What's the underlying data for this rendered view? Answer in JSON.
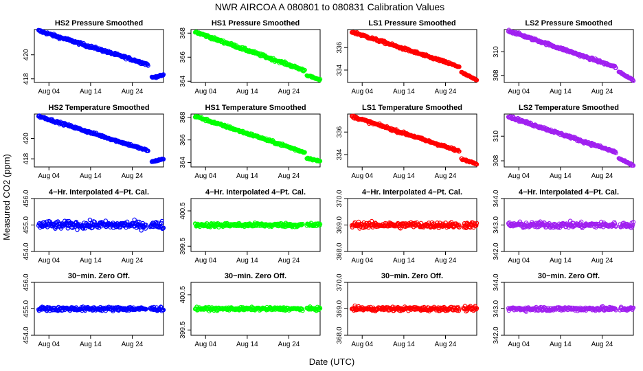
{
  "title": "NWR   AIRCOA A   080801 to 080831   Calibration Values",
  "xlabel": "Date (UTC)",
  "ylabel": "Measured CO2 (ppm)",
  "colors": {
    "HS2": "#0000ff",
    "HS1": "#00ff00",
    "LS1": "#ff0000",
    "LS2": "#a020f0"
  },
  "chart_data": [
    {
      "type": "scatter",
      "title": "HS2 Pressure Smoothed",
      "color_key": "HS2",
      "xlim": [
        0,
        31
      ],
      "ylim": [
        417.7,
        422.1
      ],
      "yticks": [
        418,
        420
      ],
      "xticks": [
        3.5,
        13.5,
        23.5
      ],
      "xticklabels": [
        "Aug 04",
        "Aug 14",
        "Aug 24"
      ],
      "segments": [
        {
          "x": [
            1,
            27.3
          ],
          "y": [
            422.0,
            419.2
          ],
          "noise": 0.1
        },
        {
          "x": [
            28.2,
            31
          ],
          "y": [
            418.1,
            418.3
          ],
          "noise": 0.06
        }
      ]
    },
    {
      "type": "scatter",
      "title": "HS1 Pressure Smoothed",
      "color_key": "HS1",
      "xlim": [
        0,
        31
      ],
      "ylim": [
        363.9,
        368.3
      ],
      "yticks": [
        364,
        366,
        368
      ],
      "xticks": [
        3.5,
        13.5,
        23.5
      ],
      "xticklabels": [
        "Aug 04",
        "Aug 14",
        "Aug 24"
      ],
      "segments": [
        {
          "x": [
            1,
            27.3
          ],
          "y": [
            368.1,
            364.9
          ],
          "noise": 0.1
        },
        {
          "x": [
            27.8,
            31
          ],
          "y": [
            364.5,
            364.1
          ],
          "noise": 0.06
        }
      ]
    },
    {
      "type": "scatter",
      "title": "LS1 Pressure Smoothed",
      "color_key": "LS1",
      "xlim": [
        0,
        31
      ],
      "ylim": [
        332.9,
        337.6
      ],
      "yticks": [
        334,
        336
      ],
      "xticks": [
        3.5,
        13.5,
        23.5
      ],
      "xticklabels": [
        "Aug 04",
        "Aug 14",
        "Aug 24"
      ],
      "segments": [
        {
          "x": [
            1,
            26.8
          ],
          "y": [
            337.4,
            334.3
          ],
          "noise": 0.1
        },
        {
          "x": [
            27.3,
            31
          ],
          "y": [
            333.8,
            333.1
          ],
          "noise": 0.06
        }
      ]
    },
    {
      "type": "scatter",
      "title": "LS2 Pressure Smoothed",
      "color_key": "LS2",
      "xlim": [
        0,
        31
      ],
      "ylim": [
        307.4,
        311.9
      ],
      "yticks": [
        308,
        310
      ],
      "xticks": [
        3.5,
        13.5,
        23.5
      ],
      "xticklabels": [
        "Aug 04",
        "Aug 14",
        "Aug 24"
      ],
      "segments": [
        {
          "x": [
            1,
            26.8
          ],
          "y": [
            311.8,
            308.7
          ],
          "noise": 0.1
        },
        {
          "x": [
            27.5,
            31
          ],
          "y": [
            308.3,
            307.6
          ],
          "noise": 0.06
        }
      ]
    },
    {
      "type": "scatter",
      "title": "HS2 Temperature Smoothed",
      "color_key": "HS2",
      "xlim": [
        0,
        31
      ],
      "ylim": [
        417.2,
        422.4
      ],
      "yticks": [
        418,
        420
      ],
      "xticks": [
        3.5,
        13.5,
        23.5
      ],
      "xticklabels": [
        "Aug 04",
        "Aug 14",
        "Aug 24"
      ],
      "segments": [
        {
          "x": [
            1,
            27.3
          ],
          "y": [
            422.2,
            418.8
          ],
          "noise": 0.1
        },
        {
          "x": [
            28.2,
            31
          ],
          "y": [
            417.7,
            418.0
          ],
          "noise": 0.06
        }
      ]
    },
    {
      "type": "scatter",
      "title": "HS1 Temperature Smoothed",
      "color_key": "HS1",
      "xlim": [
        0,
        31
      ],
      "ylim": [
        363.6,
        368.3
      ],
      "yticks": [
        364,
        366,
        368
      ],
      "xticks": [
        3.5,
        13.5,
        23.5
      ],
      "xticklabels": [
        "Aug 04",
        "Aug 14",
        "Aug 24"
      ],
      "segments": [
        {
          "x": [
            1,
            27.3
          ],
          "y": [
            368.1,
            364.9
          ],
          "noise": 0.1
        },
        {
          "x": [
            27.8,
            31
          ],
          "y": [
            364.4,
            364.1
          ],
          "noise": 0.06
        }
      ]
    },
    {
      "type": "scatter",
      "title": "LS1 Temperature Smoothed",
      "color_key": "LS1",
      "xlim": [
        0,
        31
      ],
      "ylim": [
        332.9,
        337.6
      ],
      "yticks": [
        334,
        336
      ],
      "xticks": [
        3.5,
        13.5,
        23.5
      ],
      "xticklabels": [
        "Aug 04",
        "Aug 14",
        "Aug 24"
      ],
      "segments": [
        {
          "x": [
            1,
            26.8
          ],
          "y": [
            337.4,
            334.3
          ],
          "noise": 0.1
        },
        {
          "x": [
            27.3,
            31
          ],
          "y": [
            333.6,
            333.2
          ],
          "noise": 0.06
        }
      ]
    },
    {
      "type": "scatter",
      "title": "LS2 Temperature Smoothed",
      "color_key": "LS2",
      "xlim": [
        0,
        31
      ],
      "ylim": [
        307.5,
        311.8
      ],
      "yticks": [
        308,
        310
      ],
      "xticks": [
        3.5,
        13.5,
        23.5
      ],
      "xticklabels": [
        "Aug 04",
        "Aug 14",
        "Aug 24"
      ],
      "segments": [
        {
          "x": [
            1,
            26.8
          ],
          "y": [
            311.6,
            308.7
          ],
          "noise": 0.1
        },
        {
          "x": [
            27.5,
            31
          ],
          "y": [
            308.2,
            307.6
          ],
          "noise": 0.06
        }
      ]
    },
    {
      "type": "scatter",
      "title": "4−Hr. Interpolated 4−Pt. Cal.",
      "color_key": "HS2",
      "xlim": [
        0,
        31
      ],
      "ylim": [
        454.0,
        456.0
      ],
      "yticks": [
        454.0,
        455.0,
        456.0
      ],
      "rotate_ticks": true,
      "xticks": [
        3.5,
        13.5,
        23.5
      ],
      "xticklabels": [
        "Aug 04",
        "Aug 14",
        "Aug 24"
      ],
      "segments": [
        {
          "x": [
            1,
            26.8
          ],
          "y": [
            455.0,
            455.0
          ],
          "noise": 0.13
        },
        {
          "x": [
            27.8,
            31
          ],
          "y": [
            455.0,
            455.0
          ],
          "noise": 0.13
        }
      ]
    },
    {
      "type": "scatter",
      "title": "4−Hr. Interpolated 4−Pt. Cal.",
      "color_key": "HS1",
      "xlim": [
        0,
        31
      ],
      "ylim": [
        399.35,
        400.85
      ],
      "yticks": [
        399.5,
        400.5
      ],
      "rotate_ticks": true,
      "xticks": [
        3.5,
        13.5,
        23.5
      ],
      "xticklabels": [
        "Aug 04",
        "Aug 14",
        "Aug 24"
      ],
      "segments": [
        {
          "x": [
            1,
            26.8
          ],
          "y": [
            400.1,
            400.1
          ],
          "noise": 0.05
        },
        {
          "x": [
            27.8,
            31
          ],
          "y": [
            400.1,
            400.1
          ],
          "noise": 0.05
        }
      ]
    },
    {
      "type": "scatter",
      "title": "4−Hr. Interpolated 4−Pt. Cal.",
      "color_key": "LS1",
      "xlim": [
        0,
        31
      ],
      "ylim": [
        368.0,
        370.0
      ],
      "yticks": [
        368.0,
        369.0,
        370.0
      ],
      "rotate_ticks": true,
      "xticks": [
        3.5,
        13.5,
        23.5
      ],
      "xticklabels": [
        "Aug 04",
        "Aug 14",
        "Aug 24"
      ],
      "segments": [
        {
          "x": [
            1,
            26.8
          ],
          "y": [
            369.0,
            369.0
          ],
          "noise": 0.1
        },
        {
          "x": [
            27.8,
            31
          ],
          "y": [
            369.0,
            369.0
          ],
          "noise": 0.1
        }
      ]
    },
    {
      "type": "scatter",
      "title": "4−Hr. Interpolated 4−Pt. Cal.",
      "color_key": "LS2",
      "xlim": [
        0,
        31
      ],
      "ylim": [
        342.0,
        344.0
      ],
      "yticks": [
        342.0,
        343.0,
        344.0
      ],
      "rotate_ticks": true,
      "xticks": [
        3.5,
        13.5,
        23.5
      ],
      "xticklabels": [
        "Aug 04",
        "Aug 14",
        "Aug 24"
      ],
      "segments": [
        {
          "x": [
            1,
            26.8
          ],
          "y": [
            343.0,
            343.0
          ],
          "noise": 0.1
        },
        {
          "x": [
            27.8,
            31
          ],
          "y": [
            343.0,
            343.0
          ],
          "noise": 0.1
        }
      ]
    },
    {
      "type": "scatter",
      "title": "30−min. Zero Off.",
      "color_key": "HS2",
      "xlim": [
        0,
        31
      ],
      "ylim": [
        454.0,
        456.0
      ],
      "yticks": [
        454.0,
        455.0,
        456.0
      ],
      "rotate_ticks": true,
      "xticks": [
        3.5,
        13.5,
        23.5
      ],
      "xticklabels": [
        "Aug 04",
        "Aug 14",
        "Aug 24"
      ],
      "segments": [
        {
          "x": [
            1,
            26.8
          ],
          "y": [
            455.0,
            455.0
          ],
          "noise": 0.07
        },
        {
          "x": [
            27.8,
            31
          ],
          "y": [
            455.0,
            455.0
          ],
          "noise": 0.07
        }
      ]
    },
    {
      "type": "scatter",
      "title": "30−min. Zero Off.",
      "color_key": "HS1",
      "xlim": [
        0,
        31
      ],
      "ylim": [
        399.35,
        400.85
      ],
      "yticks": [
        399.5,
        400.5
      ],
      "rotate_ticks": true,
      "xticks": [
        3.5,
        13.5,
        23.5
      ],
      "xticklabels": [
        "Aug 04",
        "Aug 14",
        "Aug 24"
      ],
      "segments": [
        {
          "x": [
            1,
            26.8
          ],
          "y": [
            400.1,
            400.1
          ],
          "noise": 0.04
        },
        {
          "x": [
            27.8,
            31
          ],
          "y": [
            400.1,
            400.1
          ],
          "noise": 0.04
        }
      ]
    },
    {
      "type": "scatter",
      "title": "30−min. Zero Off.",
      "color_key": "LS1",
      "xlim": [
        0,
        31
      ],
      "ylim": [
        368.0,
        370.0
      ],
      "yticks": [
        368.0,
        369.0,
        370.0
      ],
      "rotate_ticks": true,
      "xticks": [
        3.5,
        13.5,
        23.5
      ],
      "xticklabels": [
        "Aug 04",
        "Aug 14",
        "Aug 24"
      ],
      "segments": [
        {
          "x": [
            1,
            26.8
          ],
          "y": [
            369.0,
            369.0
          ],
          "noise": 0.07
        },
        {
          "x": [
            27.8,
            31
          ],
          "y": [
            369.0,
            369.0
          ],
          "noise": 0.07
        }
      ]
    },
    {
      "type": "scatter",
      "title": "30−min. Zero Off.",
      "color_key": "LS2",
      "xlim": [
        0,
        31
      ],
      "ylim": [
        342.0,
        344.0
      ],
      "yticks": [
        342.0,
        343.0,
        344.0
      ],
      "rotate_ticks": true,
      "xticks": [
        3.5,
        13.5,
        23.5
      ],
      "xticklabels": [
        "Aug 04",
        "Aug 14",
        "Aug 24"
      ],
      "segments": [
        {
          "x": [
            1,
            26.8
          ],
          "y": [
            343.0,
            343.0
          ],
          "noise": 0.07
        },
        {
          "x": [
            27.8,
            31
          ],
          "y": [
            343.0,
            343.0
          ],
          "noise": 0.07
        }
      ]
    }
  ]
}
